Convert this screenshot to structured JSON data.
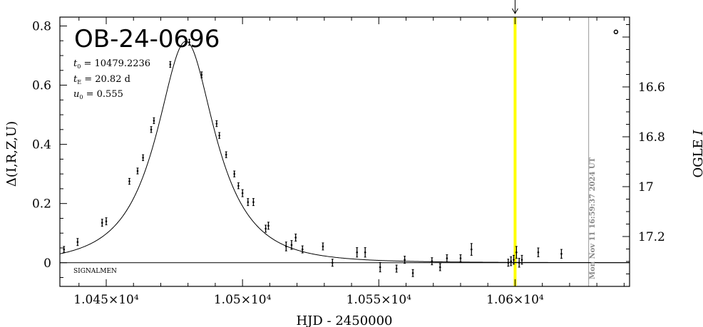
{
  "chart_data": {
    "type": "scatter",
    "title": "OB-24-0696",
    "xlabel": "HJD  -  2450000",
    "ylabel": "Δ(I,R,Z,U)",
    "y2label": "OGLE I",
    "xlim": [
      10433,
      10642
    ],
    "ylim": [
      -0.08,
      0.83
    ],
    "y2lim": [
      17.4,
      16.32
    ],
    "x_ticks": [
      10450,
      10500,
      10550,
      10600
    ],
    "x_tick_labels": [
      "1.045×10⁴",
      "1.05×10⁴",
      "1.055×10⁴",
      "1.06×10⁴"
    ],
    "y_ticks": [
      0,
      0.2,
      0.4,
      0.6,
      0.8
    ],
    "y_tick_labels": [
      "0",
      "0.2",
      "0.4",
      "0.6",
      "0.8"
    ],
    "y2_ticks": [
      16.6,
      16.8,
      17,
      17.2
    ],
    "y2_tick_labels": [
      "16.6",
      "16.8",
      "17",
      "17.2"
    ],
    "params": {
      "t0": "10479.2236",
      "tE": "20.82 d",
      "u0": "0.555"
    },
    "model": {
      "t0": 10479.2236,
      "tE": 20.82,
      "u0": 0.555
    },
    "points": [
      {
        "x": 10434.5,
        "y": 0.045,
        "err": 0.01
      },
      {
        "x": 10439.5,
        "y": 0.07,
        "err": 0.012
      },
      {
        "x": 10448.5,
        "y": 0.135,
        "err": 0.012
      },
      {
        "x": 10450,
        "y": 0.14,
        "err": 0.012
      },
      {
        "x": 10458.5,
        "y": 0.275,
        "err": 0.01
      },
      {
        "x": 10461.5,
        "y": 0.31,
        "err": 0.01
      },
      {
        "x": 10463.5,
        "y": 0.355,
        "err": 0.01
      },
      {
        "x": 10466.5,
        "y": 0.45,
        "err": 0.01
      },
      {
        "x": 10467.5,
        "y": 0.48,
        "err": 0.01
      },
      {
        "x": 10473.5,
        "y": 0.67,
        "err": 0.01
      },
      {
        "x": 10480.5,
        "y": 0.745,
        "err": 0.01
      },
      {
        "x": 10485,
        "y": 0.635,
        "err": 0.01
      },
      {
        "x": 10490.5,
        "y": 0.47,
        "err": 0.01
      },
      {
        "x": 10491.5,
        "y": 0.43,
        "err": 0.01
      },
      {
        "x": 10494,
        "y": 0.365,
        "err": 0.01
      },
      {
        "x": 10497,
        "y": 0.3,
        "err": 0.01
      },
      {
        "x": 10498.5,
        "y": 0.26,
        "err": 0.01
      },
      {
        "x": 10500,
        "y": 0.235,
        "err": 0.012
      },
      {
        "x": 10502,
        "y": 0.205,
        "err": 0.012
      },
      {
        "x": 10504,
        "y": 0.205,
        "err": 0.012
      },
      {
        "x": 10508.5,
        "y": 0.115,
        "err": 0.012
      },
      {
        "x": 10509.5,
        "y": 0.125,
        "err": 0.012
      },
      {
        "x": 10516,
        "y": 0.055,
        "err": 0.015
      },
      {
        "x": 10518,
        "y": 0.06,
        "err": 0.015
      },
      {
        "x": 10519.5,
        "y": 0.085,
        "err": 0.012
      },
      {
        "x": 10522,
        "y": 0.045,
        "err": 0.012
      },
      {
        "x": 10529.5,
        "y": 0.055,
        "err": 0.012
      },
      {
        "x": 10533,
        "y": 0.0,
        "err": 0.012
      },
      {
        "x": 10542,
        "y": 0.035,
        "err": 0.016
      },
      {
        "x": 10545,
        "y": 0.035,
        "err": 0.016
      },
      {
        "x": 10550.5,
        "y": -0.015,
        "err": 0.016
      },
      {
        "x": 10556.5,
        "y": -0.02,
        "err": 0.012
      },
      {
        "x": 10559.5,
        "y": 0.01,
        "err": 0.012
      },
      {
        "x": 10562.5,
        "y": -0.035,
        "err": 0.012
      },
      {
        "x": 10569.5,
        "y": 0.005,
        "err": 0.012
      },
      {
        "x": 10572.5,
        "y": -0.015,
        "err": 0.012
      },
      {
        "x": 10575,
        "y": 0.015,
        "err": 0.012
      },
      {
        "x": 10580,
        "y": 0.015,
        "err": 0.012
      },
      {
        "x": 10584,
        "y": 0.045,
        "err": 0.02
      },
      {
        "x": 10597.5,
        "y": 0.0,
        "err": 0.012
      },
      {
        "x": 10598.5,
        "y": 0.005,
        "err": 0.015
      },
      {
        "x": 10599.5,
        "y": 0.01,
        "err": 0.015
      },
      {
        "x": 10600.5,
        "y": 0.035,
        "err": 0.02
      },
      {
        "x": 10601.5,
        "y": 0.0,
        "err": 0.015
      },
      {
        "x": 10602.5,
        "y": 0.01,
        "err": 0.015
      },
      {
        "x": 10608.5,
        "y": 0.035,
        "err": 0.015
      },
      {
        "x": 10617,
        "y": 0.03,
        "err": 0.015
      }
    ],
    "extra_point": {
      "x": 10637,
      "y": 0.78
    },
    "highlight_line_x": 10600,
    "date_line_x": 10627,
    "grid": false,
    "annotations": {
      "signalmen": "SIGNALMEN",
      "timestamp": "Mon Nov 11 16:59:37 2024 UT"
    },
    "colors": {
      "highlight": "#ffff00",
      "date_line": "#999999",
      "stamp": "#888888"
    }
  }
}
